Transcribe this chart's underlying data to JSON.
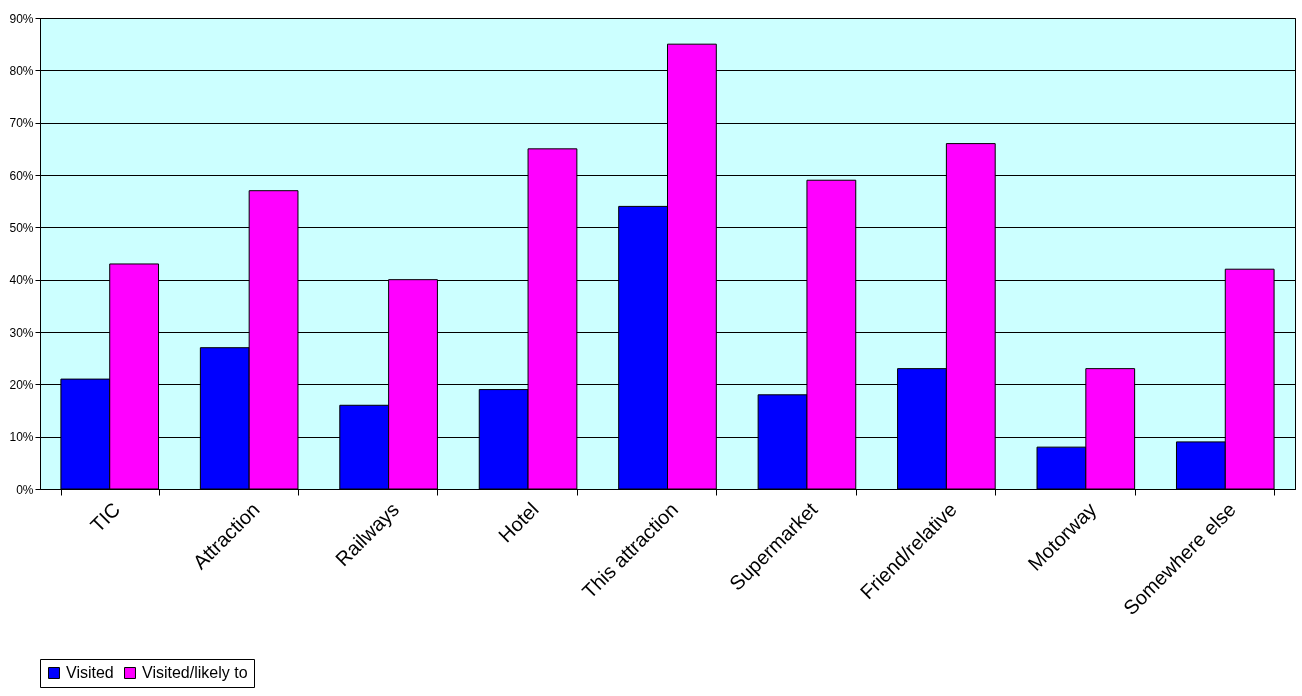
{
  "chart_data": {
    "type": "bar",
    "categories": [
      "TIC",
      "Attraction",
      "Railways",
      "Hotel",
      "This attraction",
      "Supermarket",
      "Friend/relative",
      "Motorway",
      "Somewhere else"
    ],
    "series": [
      {
        "name": "Visited",
        "color": "#0000ff",
        "values": [
          21,
          27,
          16,
          19,
          54,
          18,
          23,
          8,
          9
        ]
      },
      {
        "name": "Visited/likely to",
        "color": "#ff00ff",
        "values": [
          43,
          57,
          40,
          65,
          85,
          59,
          66,
          23,
          42
        ]
      }
    ],
    "ylim": [
      0,
      90
    ],
    "yticks": [
      {
        "value": 0,
        "label": "0%"
      },
      {
        "value": 10,
        "label": "10%"
      },
      {
        "value": 20,
        "label": "20%"
      },
      {
        "value": 30,
        "label": "30%"
      },
      {
        "value": 40,
        "label": "40%"
      },
      {
        "value": 50,
        "label": "50%"
      },
      {
        "value": 60,
        "label": "60%"
      },
      {
        "value": 70,
        "label": "70%"
      },
      {
        "value": 80,
        "label": "80%"
      },
      {
        "value": 90,
        "label": "90%"
      }
    ],
    "grid": "y",
    "legend": "bottom"
  }
}
